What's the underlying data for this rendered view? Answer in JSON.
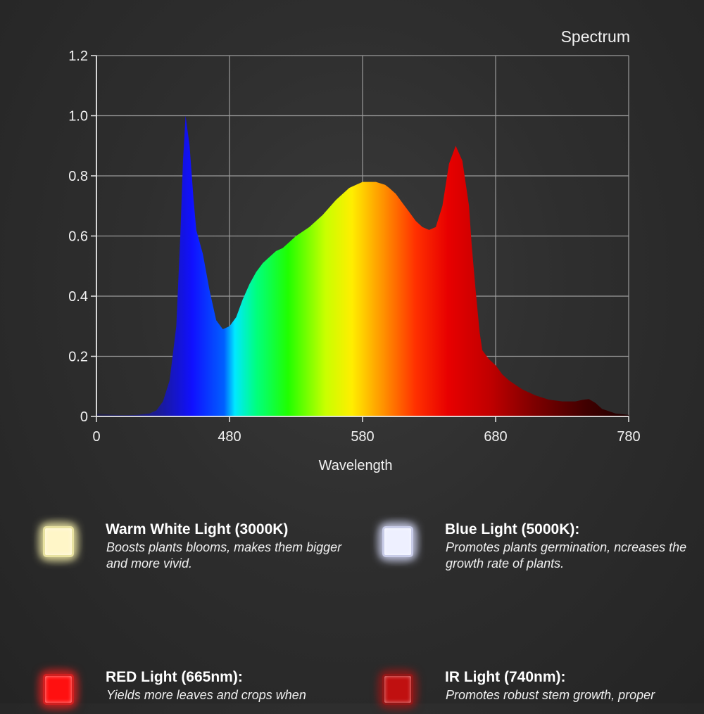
{
  "chart_data": {
    "type": "area",
    "title": "Spectrum",
    "xlabel": "Wavelength",
    "ylabel": "",
    "xticks": [
      "0",
      "480",
      "580",
      "680",
      "780"
    ],
    "yticks": [
      "0",
      "0.2",
      "0.4",
      "0.6",
      "0.8",
      "1.0",
      "1.2"
    ],
    "xlim": [
      380,
      780
    ],
    "ylim": [
      0,
      1.2
    ],
    "grid": true,
    "x": [
      380,
      390,
      400,
      410,
      420,
      425,
      430,
      435,
      440,
      443,
      445,
      447,
      450,
      453,
      455,
      460,
      465,
      470,
      475,
      480,
      485,
      490,
      495,
      500,
      505,
      510,
      515,
      520,
      530,
      540,
      550,
      560,
      570,
      580,
      590,
      597,
      600,
      605,
      610,
      615,
      620,
      625,
      630,
      635,
      640,
      645,
      650,
      655,
      660,
      662,
      665,
      668,
      670,
      675,
      680,
      685,
      690,
      700,
      710,
      720,
      730,
      740,
      745,
      750,
      755,
      760,
      770,
      780
    ],
    "values": [
      0.01,
      0.006,
      0.004,
      0.005,
      0.01,
      0.02,
      0.05,
      0.12,
      0.3,
      0.6,
      0.85,
      1.0,
      0.9,
      0.72,
      0.62,
      0.54,
      0.42,
      0.32,
      0.29,
      0.3,
      0.33,
      0.39,
      0.44,
      0.48,
      0.51,
      0.53,
      0.55,
      0.56,
      0.6,
      0.63,
      0.67,
      0.72,
      0.76,
      0.78,
      0.78,
      0.77,
      0.76,
      0.74,
      0.71,
      0.68,
      0.65,
      0.63,
      0.62,
      0.63,
      0.7,
      0.84,
      0.9,
      0.85,
      0.7,
      0.57,
      0.42,
      0.28,
      0.22,
      0.19,
      0.17,
      0.14,
      0.12,
      0.09,
      0.07,
      0.056,
      0.05,
      0.05,
      0.055,
      0.058,
      0.045,
      0.025,
      0.01,
      0.005
    ]
  },
  "features": [
    {
      "title": "Warm White Light (3000K)",
      "desc": "Boosts plants blooms, makes them bigger and more vivid.",
      "color": "#fff6c8",
      "glow": "#e8e2a0"
    },
    {
      "title": "Blue Light (5000K):",
      "desc": "Promotes plants germination, ncreases the growth rate of plants.",
      "color": "#eef0ff",
      "glow": "#c8cce8"
    },
    {
      "title": "RED Light (665nm):",
      "desc": "Yields more leaves and crops when",
      "color": "#ff1010",
      "glow": "#d02020"
    },
    {
      "title": "IR Light (740nm):",
      "desc": "Promotes robust stem growth, proper",
      "color": "#c01010",
      "glow": "#901818"
    }
  ]
}
